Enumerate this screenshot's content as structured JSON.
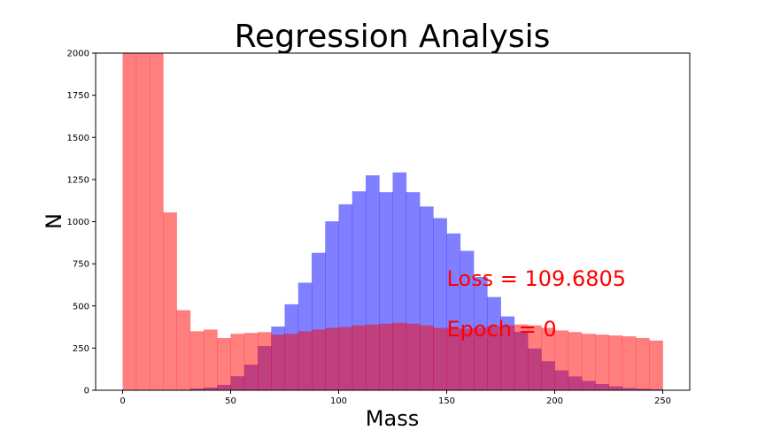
{
  "chart_data": {
    "type": "histogram",
    "title": "Regression Analysis",
    "xlabel": "Mass",
    "ylabel": "N",
    "xlim": [
      -12.5,
      262.5
    ],
    "ylim": [
      0,
      2000
    ],
    "xticks": [
      0,
      50,
      100,
      150,
      200,
      250
    ],
    "yticks": [
      0,
      250,
      500,
      750,
      1000,
      1250,
      1500,
      1750,
      2000
    ],
    "bin_edges": [
      0,
      6.25,
      12.5,
      18.75,
      25,
      31.25,
      37.5,
      43.75,
      50,
      56.25,
      62.5,
      68.75,
      75,
      81.25,
      87.5,
      93.75,
      100,
      106.25,
      112.5,
      118.75,
      125,
      131.25,
      137.5,
      143.75,
      150,
      156.25,
      162.5,
      168.75,
      175,
      181.25,
      187.5,
      193.75,
      200,
      206.25,
      212.5,
      218.75,
      225,
      231.25,
      237.5,
      243.75,
      250
    ],
    "series": [
      {
        "color": "#0000ff",
        "alpha": 0.5,
        "values": [
          0,
          0,
          0,
          0,
          3,
          10,
          16,
          32,
          83,
          152,
          262,
          378,
          510,
          638,
          815,
          1002,
          1103,
          1180,
          1275,
          1175,
          1292,
          1175,
          1090,
          1021,
          930,
          827,
          672,
          553,
          438,
          347,
          248,
          172,
          118,
          82,
          55,
          37,
          23,
          13,
          9,
          6
        ]
      },
      {
        "color": "#ff0000",
        "alpha": 0.5,
        "values": [
          2000,
          2000,
          2000,
          1055,
          475,
          350,
          360,
          310,
          335,
          340,
          345,
          330,
          335,
          350,
          360,
          370,
          375,
          385,
          390,
          395,
          400,
          395,
          385,
          370,
          365,
          365,
          370,
          380,
          385,
          390,
          385,
          370,
          355,
          345,
          335,
          330,
          325,
          320,
          310,
          295
        ]
      }
    ],
    "annotations": [
      {
        "text": "Loss = 109.6805",
        "x": 150,
        "y": 620,
        "color": "#ff0000"
      },
      {
        "text": "Epoch = 0",
        "x": 150,
        "y": 320,
        "color": "#ff0000"
      }
    ]
  }
}
